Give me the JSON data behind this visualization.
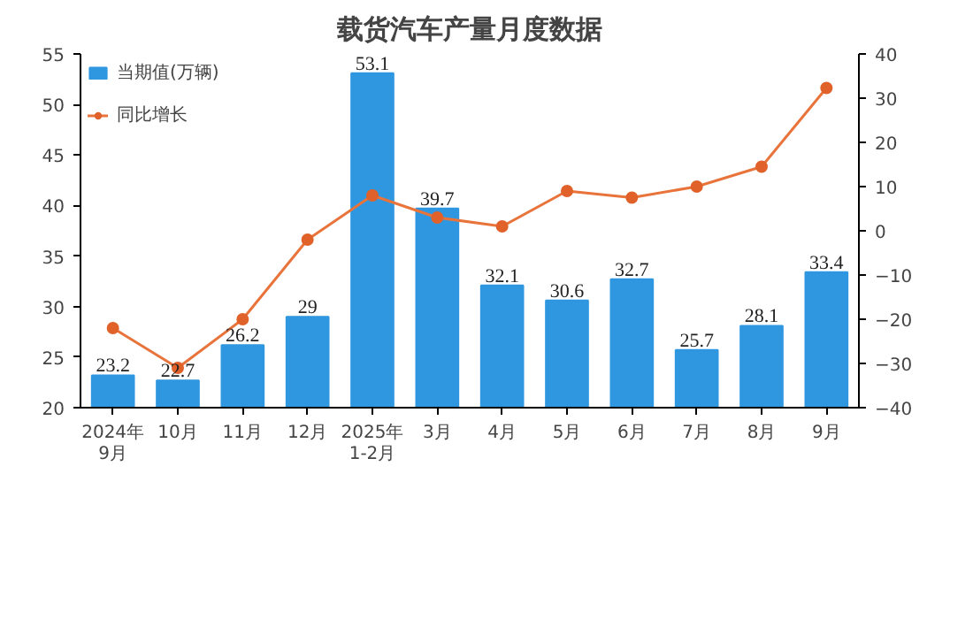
{
  "chart_data": {
    "type": "bar",
    "title": "载货汽车产量月度数据",
    "categories": [
      "2024年\n9月",
      "10月",
      "11月",
      "12月",
      "2025年\n1-2月",
      "3月",
      "4月",
      "5月",
      "6月",
      "7月",
      "8月",
      "9月"
    ],
    "series": [
      {
        "name": "当期值(万辆)",
        "color": "#2f97e0",
        "values": [
          23.2,
          22.7,
          26.2,
          29,
          53.1,
          39.7,
          32.1,
          30.6,
          32.7,
          25.7,
          28.1,
          33.4
        ],
        "value_labels": [
          "23.2",
          "22.7",
          "26.2",
          "29",
          "53.1",
          "39.7",
          "32.1",
          "30.6",
          "32.7",
          "25.7",
          "28.1",
          "33.4"
        ]
      },
      {
        "name": "同比增长",
        "type": "line",
        "axis": "y2",
        "color": "#e8743b",
        "values": [
          -22,
          -31,
          -20,
          -2,
          8,
          3,
          1,
          9,
          7.5,
          10,
          14.5,
          32.3
        ]
      }
    ],
    "ylim": [
      20,
      55
    ],
    "yticks": [
      20,
      25,
      30,
      35,
      40,
      45,
      50,
      55
    ],
    "y2lim": [
      -40,
      40
    ],
    "y2ticks": [
      -40,
      -30,
      -20,
      -10,
      0,
      10,
      20,
      30,
      40
    ],
    "grid": false,
    "legend": "top left",
    "marker": "circle",
    "line_style": "solid"
  }
}
